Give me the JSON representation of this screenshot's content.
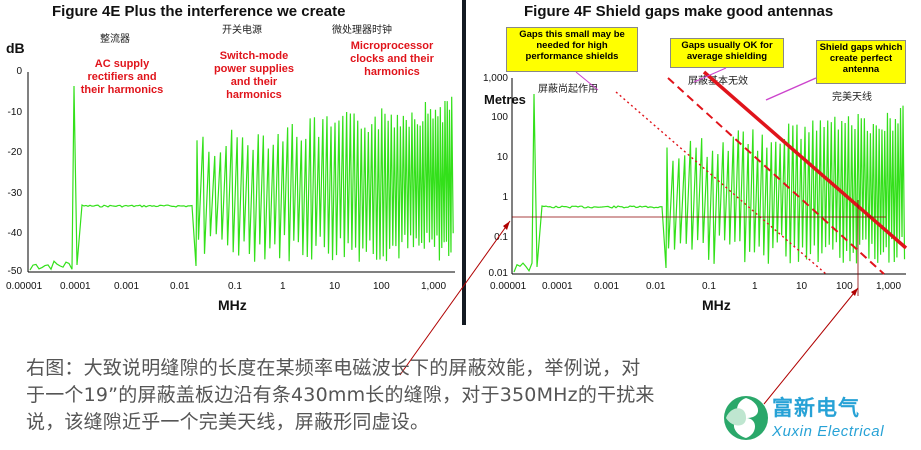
{
  "left": {
    "title": "Figure 4E    Plus the interference we create",
    "y_unit": "dB",
    "y_ticks": [
      "0",
      "-10",
      "-20",
      "-30",
      "-40",
      "-50"
    ],
    "x_ticks": [
      "0.00001",
      "0.0001",
      "0.001",
      "0.01",
      "0.1",
      "1",
      "10",
      "100",
      "1,000"
    ],
    "x_title": "MHz",
    "cn_labels": [
      "整流器",
      "开关电源",
      "微处理器时钟"
    ],
    "notes": [
      {
        "text": "AC supply rectifiers and their harmonics"
      },
      {
        "text": "Switch-mode power supplies and their harmonics"
      },
      {
        "text": "Microprocessor clocks and their harmonics"
      }
    ]
  },
  "right": {
    "title": "Figure 4F   Shield gaps make good antennas",
    "y_unit": "Metres",
    "y_ticks": [
      "1,000",
      "100",
      "10",
      "1",
      "0.1",
      "0.01"
    ],
    "x_ticks": [
      "0.00001",
      "0.0001",
      "0.001",
      "0.01",
      "0.1",
      "1",
      "10",
      "100",
      "1,000"
    ],
    "x_title": "MHz",
    "callouts": [
      "Gaps this small may be needed for high performance shields",
      "Gaps usually OK for average shielding",
      "Shield gaps which create perfect antenna"
    ],
    "cn_labels": [
      "屏蔽尚起作用",
      "屏蔽基本无效",
      "完美天线"
    ]
  },
  "caption": {
    "lines": [
      "右图：大致说明缝隙的长度在某频率电磁波长下的屏蔽效能，举例说，对",
      "于一个19”的屏蔽盖板边沿有条430mm长的缝隙，对于350MHz的干扰来",
      "说，该缝隙近乎一个完美天线，屏蔽形同虚设。"
    ]
  },
  "logo": {
    "cn": "富新电气",
    "en": "Xuxin Electrical"
  },
  "colors": {
    "spectrum": "#33e01a",
    "red": "#e0141b",
    "callout": "#ffff00",
    "logo": "#27a2d6"
  }
}
